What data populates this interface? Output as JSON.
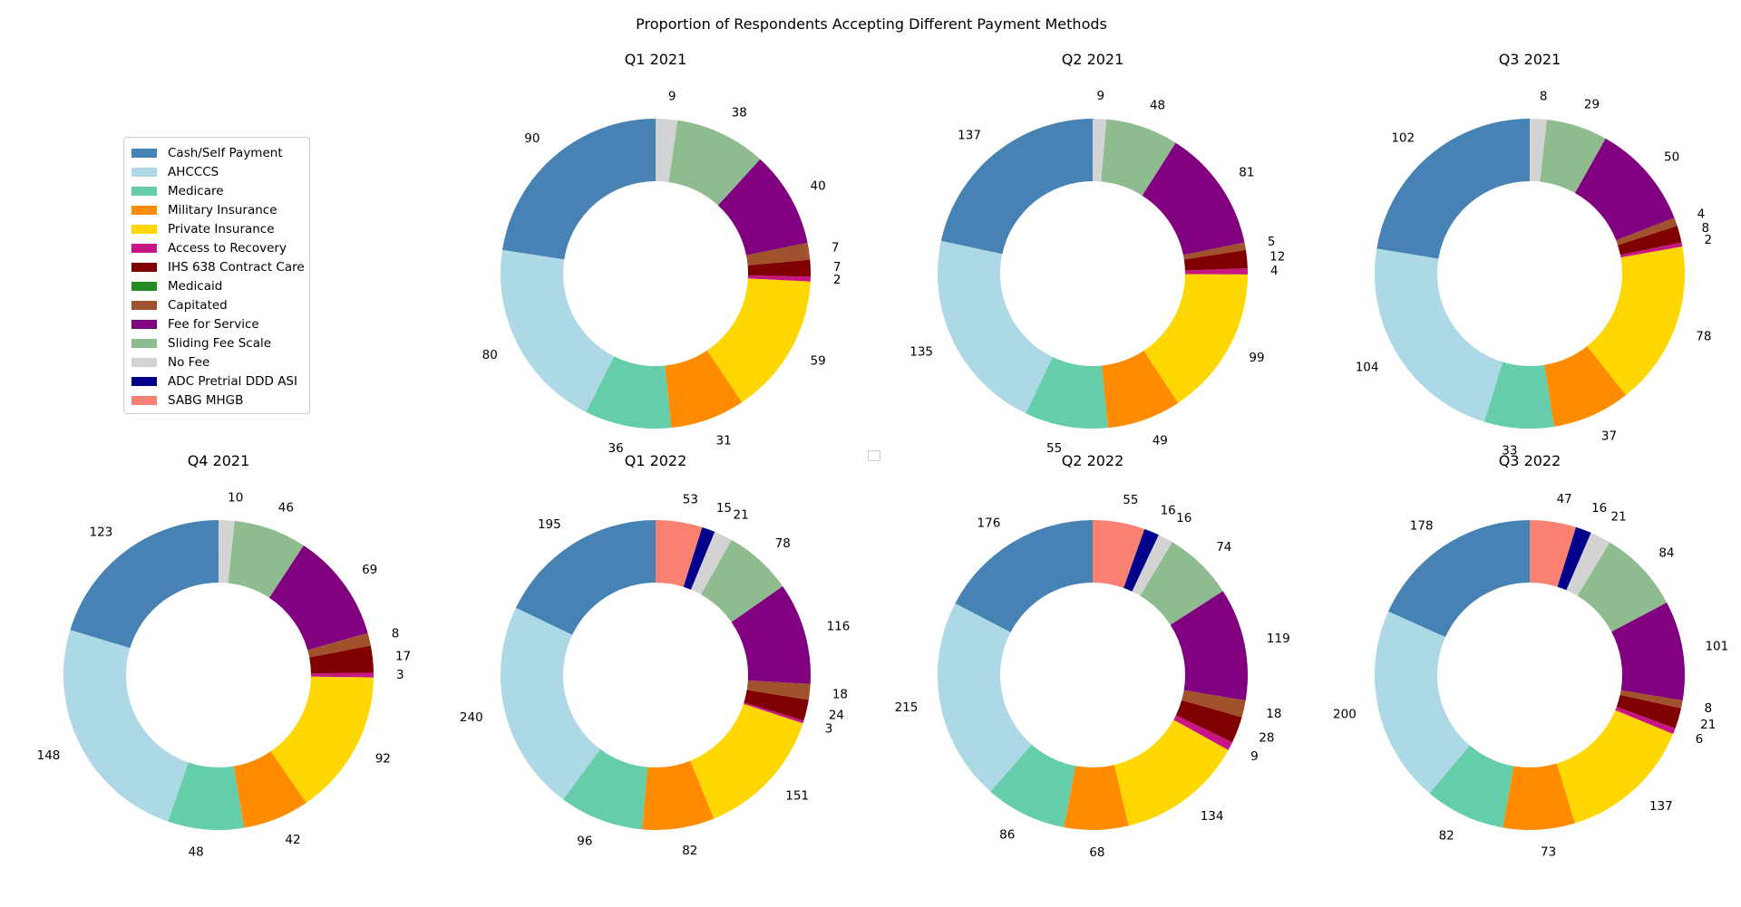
{
  "chart_data": {
    "type": "pie",
    "variant": "donut",
    "title": "Proportion of Respondents Accepting Different Payment Methods",
    "legend_position": "left",
    "categories": [
      "Cash/Self Payment",
      "AHCCCS",
      "Medicare",
      "Military Insurance",
      "Private Insurance",
      "Access to Recovery",
      "IHS 638 Contract Care",
      "Medicaid",
      "Capitated",
      "Fee for Service",
      "Sliding Fee Scale",
      "No Fee",
      "ADC Pretrial DDD ASI",
      "SABG MHGB"
    ],
    "colors": [
      "#4682b4",
      "#add8e6",
      "#66cdaa",
      "#ff8c00",
      "#ffd700",
      "#c71585",
      "#800000",
      "#228b22",
      "#a0522d",
      "#800080",
      "#8fbc8f",
      "#d3d3d3",
      "#00008b",
      "#fa8072"
    ],
    "pies": [
      {
        "label": "Q1 2021",
        "values": [
          90,
          80,
          36,
          31,
          59,
          2,
          7,
          0,
          7,
          40,
          38,
          9,
          0,
          0
        ]
      },
      {
        "label": "Q2 2021",
        "values": [
          137,
          135,
          55,
          49,
          99,
          4,
          12,
          0,
          5,
          81,
          48,
          9,
          0,
          0
        ]
      },
      {
        "label": "Q3 2021",
        "values": [
          102,
          104,
          33,
          37,
          78,
          2,
          8,
          0,
          4,
          50,
          29,
          8,
          0,
          0
        ]
      },
      {
        "label": "Q4 2021",
        "values": [
          123,
          148,
          48,
          42,
          92,
          3,
          17,
          0,
          8,
          69,
          46,
          10,
          0,
          0
        ]
      },
      {
        "label": "Q1 2022",
        "values": [
          195,
          240,
          96,
          82,
          151,
          3,
          24,
          0,
          18,
          116,
          78,
          21,
          15,
          53
        ]
      },
      {
        "label": "Q2 2022",
        "values": [
          176,
          215,
          86,
          68,
          134,
          9,
          28,
          0,
          18,
          119,
          74,
          16,
          16,
          55
        ]
      },
      {
        "label": "Q3 2022",
        "values": [
          178,
          200,
          82,
          73,
          137,
          6,
          21,
          0,
          8,
          101,
          84,
          21,
          16,
          47
        ]
      }
    ]
  }
}
